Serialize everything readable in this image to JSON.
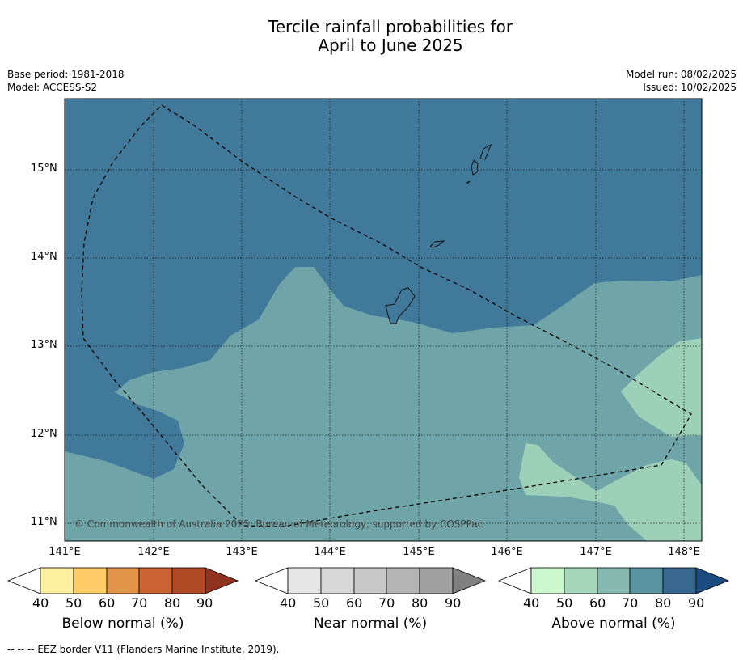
{
  "title_line1": "Tercile rainfall probabilities for",
  "title_line2": "April to June 2025",
  "base_period": "Base period: 1981-2018",
  "model": "Model: ACCESS-S2",
  "model_run": "Model run: 08/02/2025",
  "issued": "Issued: 10/02/2025",
  "copyright": "© Commonwealth of Australia 2025, Bureau of Meteorology, supported by COSPPac",
  "lat_ticks": [
    "15°N",
    "14°N",
    "13°N",
    "12°N",
    "11°N"
  ],
  "lon_ticks": [
    "141°E",
    "142°E",
    "143°E",
    "144°E",
    "145°E",
    "146°E",
    "147°E",
    "148°E"
  ],
  "colorbars": [
    {
      "title": "Below normal (%)",
      "labels": [
        "40",
        "50",
        "60",
        "70",
        "80",
        "90"
      ],
      "colors": [
        "#fff0a0",
        "#fdcc66",
        "#e2944a",
        "#cc6132",
        "#b04a26",
        "#8f3320"
      ]
    },
    {
      "title": "Near normal (%)",
      "labels": [
        "40",
        "50",
        "60",
        "70",
        "80",
        "90"
      ],
      "colors": [
        "#e6e6e6",
        "#d7d7d7",
        "#c8c8c8",
        "#b4b4b4",
        "#a0a0a0",
        "#808080"
      ]
    },
    {
      "title": "Above normal (%)",
      "labels": [
        "40",
        "50",
        "60",
        "70",
        "80",
        "90"
      ],
      "colors": [
        "#ccf7cc",
        "#a6d7bd",
        "#86b9b0",
        "#5a94a0",
        "#386891",
        "#1a4c80"
      ]
    }
  ],
  "legend_note": "--  --  -- EEZ border V11 (Flanders Marine Institute, 2019).",
  "colors": {
    "above_80_90": "#41799a",
    "above_60_70": "#6fa5a8",
    "above_50_60": "#9dd0b8"
  }
}
